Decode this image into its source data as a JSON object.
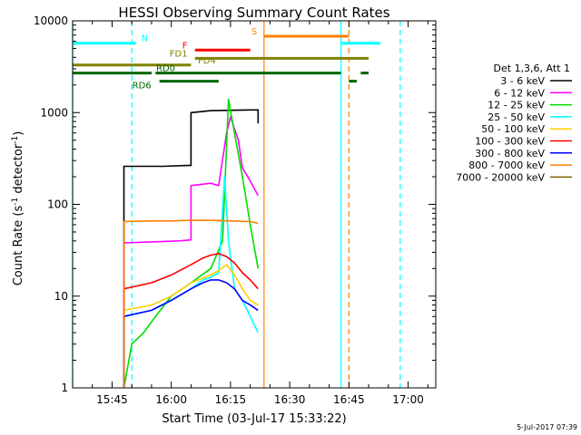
{
  "chart_data": {
    "type": "line",
    "title": "HESSI Observing Summary Count Rates",
    "xlabel": "Start Time (03-Jul-17 15:33:22)",
    "ylabel_main": "Count Rate (s",
    "ylabel_sup1": "-1",
    "ylabel_mid": " detector",
    "ylabel_sup2": "-1",
    "ylabel_end": ")",
    "footer": "5-Jul-2017 07:39",
    "x_range_min": [
      35,
      110
    ],
    "y_scale": "log",
    "y_range": [
      1,
      10000
    ],
    "x_ticks": [
      {
        "min": 45,
        "label": "15:45"
      },
      {
        "min": 60,
        "label": "16:00"
      },
      {
        "min": 75,
        "label": "16:15"
      },
      {
        "min": 90,
        "label": "16:30"
      },
      {
        "min": 105,
        "label": "16:45"
      },
      {
        "min": 120,
        "label": "17:00"
      }
    ],
    "y_ticks": [
      {
        "v": 1,
        "label": "1"
      },
      {
        "v": 10,
        "label": "10"
      },
      {
        "v": 100,
        "label": "100"
      },
      {
        "v": 1000,
        "label": "1000"
      },
      {
        "v": 10000,
        "label": "10000"
      }
    ],
    "legend": {
      "header": "Det 1,3,6, Att 1",
      "entries": [
        {
          "label": "3 - 6 keV",
          "color": "#000000"
        },
        {
          "label": "6 - 12 keV",
          "color": "#ff00ff"
        },
        {
          "label": "12 - 25 keV",
          "color": "#00dd00"
        },
        {
          "label": "25 - 50 keV",
          "color": "#00ffff"
        },
        {
          "label": "50 - 100 keV",
          "color": "#ffcc00"
        },
        {
          "label": "100 - 300 keV",
          "color": "#ff0000"
        },
        {
          "label": "300 - 800 keV",
          "color": "#0000ff"
        },
        {
          "label": "800 - 7000 keV",
          "color": "#ff8000"
        },
        {
          "label": "7000 - 20000 keV",
          "color": "#806000"
        }
      ]
    },
    "flag_bars": [
      {
        "label": "N",
        "color": "#00ffff",
        "y_val": 5700,
        "segments": [
          [
            35,
            51
          ],
          [
            103,
            113
          ]
        ]
      },
      {
        "label": "F",
        "color": "#ff0000",
        "y_val": 4800,
        "segments": [
          [
            66,
            80
          ]
        ]
      },
      {
        "label": "S",
        "color": "#ff8000",
        "y_val": 6800,
        "segments": [
          [
            83.5,
            105
          ]
        ]
      },
      {
        "label": "FD1",
        "color": "#808000",
        "y_val": 3900,
        "segments": [
          [
            66,
            110
          ]
        ]
      },
      {
        "label": "FD4",
        "color": "#808000",
        "y_val": 3300,
        "segments": [
          [
            35,
            65
          ]
        ]
      },
      {
        "label": "RD0",
        "color": "#006600",
        "y_val": 2700,
        "segments": [
          [
            35,
            55
          ],
          [
            56,
            103
          ],
          [
            108,
            110
          ]
        ]
      },
      {
        "label": "RD6",
        "color": "#006600",
        "y_val": 2200,
        "segments": [
          [
            57,
            72
          ],
          [
            105,
            107
          ]
        ]
      }
    ],
    "vlines": [
      {
        "min": 35,
        "color": "#00ffff",
        "style": "solid"
      },
      {
        "min": 50,
        "color": "#00ffff",
        "style": "dashed"
      },
      {
        "min": 83.5,
        "color": "#ff8000",
        "style": "solid"
      },
      {
        "min": 103,
        "color": "#00ffff",
        "style": "solid"
      },
      {
        "min": 105,
        "color": "#ff8000",
        "style": "dashed"
      },
      {
        "min": 118,
        "color": "#00ffff",
        "style": "dashed"
      }
    ],
    "series": [
      {
        "name": "3 - 6 keV",
        "color": "#000000",
        "points": [
          [
            48,
            1
          ],
          [
            48,
            260
          ],
          [
            58,
            260
          ],
          [
            64,
            265
          ],
          [
            65,
            265
          ],
          [
            65,
            1000
          ],
          [
            70,
            1050
          ],
          [
            75,
            1060
          ],
          [
            80,
            1070
          ],
          [
            82,
            1070
          ],
          [
            82,
            760
          ]
        ]
      },
      {
        "name": "6 - 12 keV",
        "color": "#ff00ff",
        "points": [
          [
            48,
            1
          ],
          [
            48,
            38
          ],
          [
            55,
            39
          ],
          [
            62,
            40
          ],
          [
            65,
            41
          ],
          [
            65,
            160
          ],
          [
            70,
            170
          ],
          [
            72,
            160
          ],
          [
            74,
            600
          ],
          [
            75,
            900
          ],
          [
            77,
            500
          ],
          [
            78,
            250
          ],
          [
            80,
            180
          ],
          [
            82,
            125
          ]
        ]
      },
      {
        "name": "12 - 25 keV",
        "color": "#00dd00",
        "points": [
          [
            48,
            1
          ],
          [
            50,
            3
          ],
          [
            53,
            4
          ],
          [
            56,
            6
          ],
          [
            60,
            10
          ],
          [
            65,
            14
          ],
          [
            70,
            20
          ],
          [
            73,
            40
          ],
          [
            74.5,
            1400
          ],
          [
            76,
            600
          ],
          [
            78,
            200
          ],
          [
            80,
            60
          ],
          [
            82,
            20
          ]
        ]
      },
      {
        "name": "25 - 50 keV",
        "color": "#00ffff",
        "points": [
          [
            48,
            1
          ],
          [
            48,
            6
          ],
          [
            55,
            7
          ],
          [
            60,
            9
          ],
          [
            65,
            12
          ],
          [
            68,
            15
          ],
          [
            70,
            16
          ],
          [
            72,
            18
          ],
          [
            73.5,
            200
          ],
          [
            74.5,
            40
          ],
          [
            76,
            12
          ],
          [
            78,
            9
          ],
          [
            80,
            6
          ],
          [
            82,
            4
          ]
        ]
      },
      {
        "name": "50 - 100 keV",
        "color": "#ffcc00",
        "points": [
          [
            48,
            1
          ],
          [
            48,
            7
          ],
          [
            55,
            8
          ],
          [
            60,
            10
          ],
          [
            65,
            14
          ],
          [
            70,
            17
          ],
          [
            72,
            19
          ],
          [
            74,
            22
          ],
          [
            76,
            17
          ],
          [
            78,
            12
          ],
          [
            80,
            9
          ],
          [
            82,
            8
          ]
        ]
      },
      {
        "name": "100 - 300 keV",
        "color": "#ff0000",
        "points": [
          [
            48,
            1
          ],
          [
            48,
            12
          ],
          [
            55,
            14
          ],
          [
            60,
            17
          ],
          [
            65,
            22
          ],
          [
            68,
            26
          ],
          [
            70,
            28
          ],
          [
            72,
            29
          ],
          [
            74,
            27
          ],
          [
            76,
            23
          ],
          [
            78,
            18
          ],
          [
            80,
            15
          ],
          [
            82,
            12
          ]
        ]
      },
      {
        "name": "300 - 800 keV",
        "color": "#0000ff",
        "points": [
          [
            48,
            1
          ],
          [
            48,
            6
          ],
          [
            55,
            7
          ],
          [
            60,
            9
          ],
          [
            65,
            12
          ],
          [
            68,
            14
          ],
          [
            70,
            15
          ],
          [
            72,
            15
          ],
          [
            74,
            14
          ],
          [
            76,
            12
          ],
          [
            78,
            9
          ],
          [
            80,
            8
          ],
          [
            82,
            7
          ]
        ]
      },
      {
        "name": "800 - 7000 keV",
        "color": "#ff8000",
        "points": [
          [
            48,
            1
          ],
          [
            48,
            65
          ],
          [
            55,
            66
          ],
          [
            60,
            66
          ],
          [
            65,
            67
          ],
          [
            70,
            67
          ],
          [
            75,
            66
          ],
          [
            80,
            65
          ],
          [
            82,
            62
          ]
        ]
      },
      {
        "name": "7000 - 20000 keV",
        "color": "#806000",
        "points": []
      }
    ]
  }
}
